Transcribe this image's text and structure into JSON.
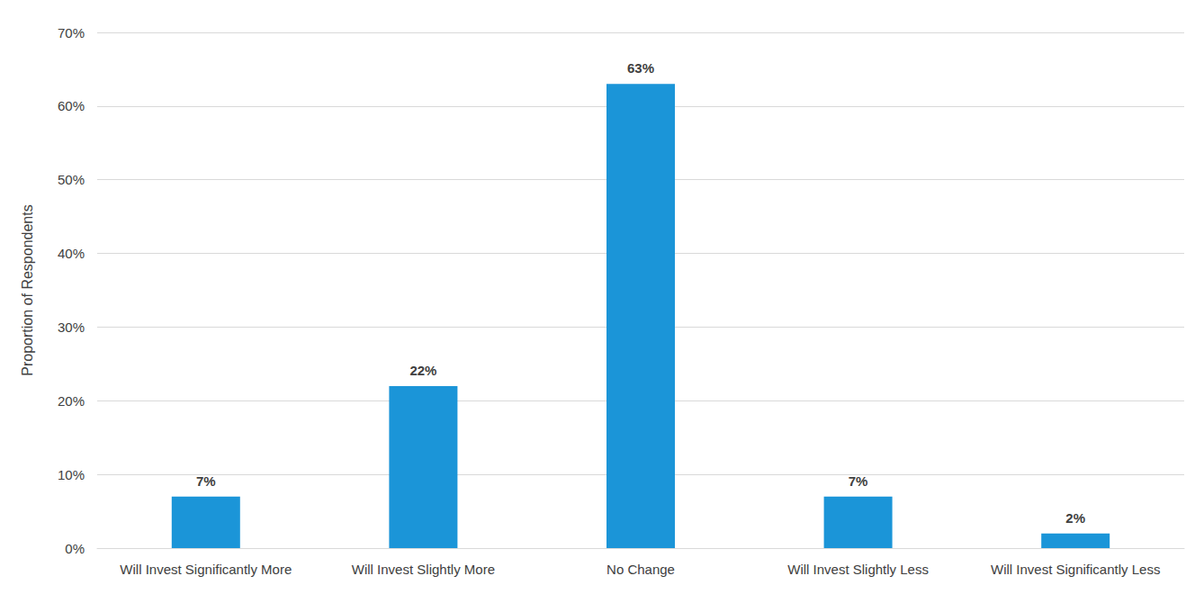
{
  "chart_data": {
    "type": "bar",
    "y_label": "Proportion of Respondents",
    "categories": [
      "Will Invest Significantly More",
      "Will Invest Slightly More",
      "No Change",
      "Will Invest Slightly Less",
      "Will Invest Significantly Less"
    ],
    "values": [
      7,
      22,
      63,
      7,
      2
    ],
    "value_labels": [
      "7%",
      "22%",
      "63%",
      "7%",
      "2%"
    ],
    "color": "#1b95d8",
    "ylim": [
      0,
      70
    ],
    "yticks": [
      {
        "value": 0,
        "label": "0%"
      },
      {
        "value": 10,
        "label": "10%"
      },
      {
        "value": 20,
        "label": "20%"
      },
      {
        "value": 30,
        "label": "30%"
      },
      {
        "value": 40,
        "label": "40%"
      },
      {
        "value": 50,
        "label": "50%"
      },
      {
        "value": 60,
        "label": "60%"
      },
      {
        "value": 70,
        "label": "70%"
      }
    ],
    "grid": true,
    "data_labels": true
  }
}
